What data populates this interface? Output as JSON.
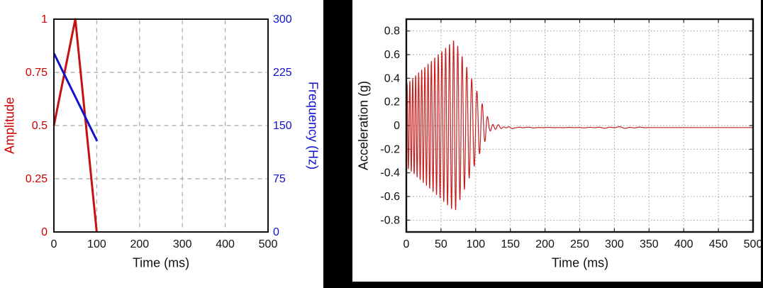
{
  "page": {
    "background_color": "#000000",
    "panel_color": "#ffffff"
  },
  "chart_data": [
    {
      "id": "input-envelope-and-frequency",
      "type": "line",
      "xlabel": "Time (ms)",
      "xlim": [
        0,
        500
      ],
      "xticks": [
        "0",
        "100",
        "200",
        "300",
        "400",
        "500"
      ],
      "grid": {
        "style": "dashed",
        "color": "#a8a8a8"
      },
      "axes": {
        "left": {
          "label": "Amplitude",
          "color": "#cc0000",
          "lim": [
            0,
            1
          ],
          "ticks": [
            "0",
            "0.25",
            "0.5",
            "0.75",
            "1"
          ]
        },
        "right": {
          "label": "Frequency (Hz)",
          "color": "#1212cc",
          "lim": [
            0,
            300
          ],
          "ticks": [
            "0",
            "75",
            "150",
            "225",
            "300"
          ]
        }
      },
      "series": [
        {
          "name": "amplitude-envelope",
          "axis": "left",
          "color": "#c41212",
          "points": [
            [
              0,
              0.5
            ],
            [
              50,
              1.0
            ],
            [
              100,
              0.0
            ]
          ]
        },
        {
          "name": "frequency-sweep",
          "axis": "right",
          "color": "#1414cc",
          "points": [
            [
              0,
              252
            ],
            [
              101,
              128
            ]
          ]
        }
      ]
    },
    {
      "id": "acceleration-time-history",
      "type": "line",
      "xlabel": "Time (ms)",
      "ylabel": "Acceleration (g)",
      "xlim": [
        0,
        500
      ],
      "xticks": [
        "0",
        "50",
        "100",
        "150",
        "200",
        "250",
        "300",
        "350",
        "400",
        "450",
        "500"
      ],
      "ylim": [
        -0.9,
        0.9
      ],
      "yticks": [
        "0.8",
        "0.6",
        "0.4",
        "0.2",
        "0",
        "-0.2",
        "-0.4",
        "-0.6",
        "-0.8"
      ],
      "grid": {
        "style": "dotted",
        "color": "#999999"
      },
      "series": [
        {
          "name": "acceleration-waveform",
          "color": "#c42020",
          "peak_g": 0.73,
          "peak_time_ms": 70,
          "synthesis": {
            "sweep_freq_hz": [
              [
                0,
                250
              ],
              [
                100,
                130
              ]
            ],
            "envelope_g": [
              [
                0,
                0.35
              ],
              [
                70,
                0.73
              ],
              [
                120,
                0.04
              ]
            ],
            "ringdown": {
              "start_ms": 120,
              "amp_g": 0.04,
              "tau_ms": 12,
              "freq_hz": 128
            },
            "noise": {
              "from_ms": 112,
              "to_ms": 350,
              "amp_g": 0.013
            },
            "baseline_g": -0.017,
            "step_ms": 0.2
          }
        }
      ]
    }
  ]
}
